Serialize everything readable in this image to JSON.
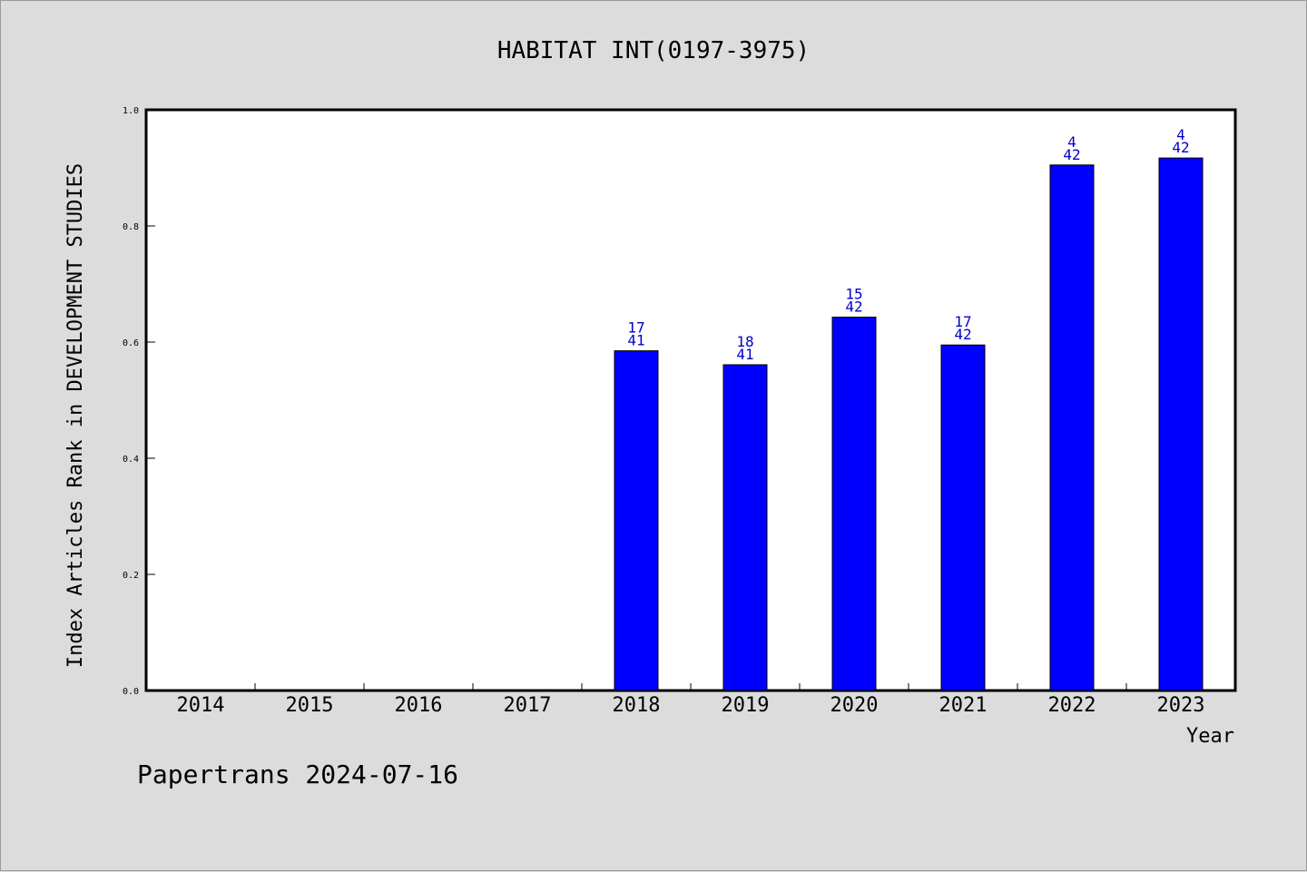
{
  "chart_data": {
    "type": "bar",
    "title": "HABITAT INT(0197-3975)",
    "xlabel": "Year",
    "ylabel": "Index Articles Rank in DEVELOPMENT STUDIES",
    "ylim": [
      0,
      1.0
    ],
    "yticks": [
      "0.0",
      "0.2",
      "0.4",
      "0.6",
      "0.8",
      "1.0"
    ],
    "grid": false,
    "categories": [
      "2014",
      "2015",
      "2016",
      "2017",
      "2018",
      "2019",
      "2020",
      "2021",
      "2022",
      "2023"
    ],
    "values": [
      null,
      null,
      null,
      null,
      0.585,
      0.561,
      0.643,
      0.595,
      0.905,
      0.917
    ],
    "rank_labels": [
      "",
      "",
      "",
      "",
      "17",
      "18",
      "15",
      "17",
      "4",
      "4"
    ],
    "total_labels": [
      "",
      "",
      "",
      "",
      "41",
      "41",
      "42",
      "42",
      "42",
      "42"
    ],
    "bar_color": "#0000ff",
    "label_color": "#0000cc"
  },
  "footer": "Papertrans 2024-07-16"
}
